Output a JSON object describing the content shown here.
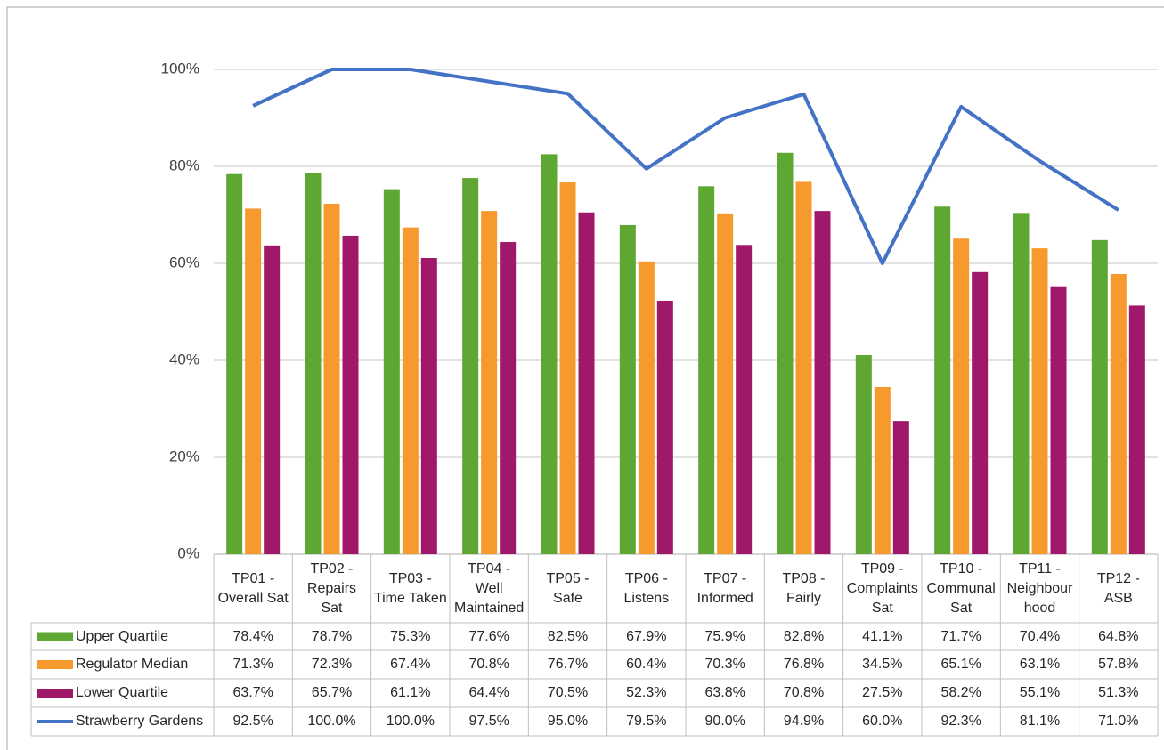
{
  "chart_data": {
    "type": "bar",
    "categories": [
      "TP01 - Overall Sat",
      "TP02 - Repairs Sat",
      "TP03 - Time Taken",
      "TP04 - Well Maintained",
      "TP05 - Safe",
      "TP06 - Listens",
      "TP07 - Informed",
      "TP08 - Fairly",
      "TP09 - Complaints Sat",
      "TP10 - Communal Sat",
      "TP11 - Neighbourhood",
      "TP12 - ASB"
    ],
    "series": [
      {
        "name": "Upper Quartile",
        "type": "bar",
        "color": "#5ea732",
        "values": [
          78.4,
          78.7,
          75.3,
          77.6,
          82.5,
          67.9,
          75.9,
          82.8,
          41.1,
          71.7,
          70.4,
          64.8
        ],
        "value_labels": [
          "78.4%",
          "78.7%",
          "75.3%",
          "77.6%",
          "82.5%",
          "67.9%",
          "75.9%",
          "82.8%",
          "41.1%",
          "71.7%",
          "70.4%",
          "64.8%"
        ]
      },
      {
        "name": "Regulator Median",
        "type": "bar",
        "color": "#f79a2e",
        "values": [
          71.3,
          72.3,
          67.4,
          70.8,
          76.7,
          60.4,
          70.3,
          76.8,
          34.5,
          65.1,
          63.1,
          57.8
        ],
        "value_labels": [
          "71.3%",
          "72.3%",
          "67.4%",
          "70.8%",
          "76.7%",
          "60.4%",
          "70.3%",
          "76.8%",
          "34.5%",
          "65.1%",
          "63.1%",
          "57.8%"
        ]
      },
      {
        "name": "Lower Quartile",
        "type": "bar",
        "color": "#a0186a",
        "values": [
          63.7,
          65.7,
          61.1,
          64.4,
          70.5,
          52.3,
          63.8,
          70.8,
          27.5,
          58.2,
          55.1,
          51.3
        ],
        "value_labels": [
          "63.7%",
          "65.7%",
          "61.1%",
          "64.4%",
          "70.5%",
          "52.3%",
          "63.8%",
          "70.8%",
          "27.5%",
          "58.2%",
          "55.1%",
          "51.3%"
        ]
      },
      {
        "name": "Strawberry Gardens",
        "type": "line",
        "color": "#4472c4",
        "values": [
          92.5,
          100.0,
          100.0,
          97.5,
          95.0,
          79.5,
          90.0,
          94.9,
          60.0,
          92.3,
          81.1,
          71.0
        ],
        "value_labels": [
          "92.5%",
          "100.0%",
          "100.0%",
          "97.5%",
          "95.0%",
          "79.5%",
          "90.0%",
          "94.9%",
          "60.0%",
          "92.3%",
          "81.1%",
          "71.0%"
        ]
      }
    ],
    "ylim": [
      0,
      100
    ],
    "yticks": [
      {
        "value": 0,
        "label": "0%"
      },
      {
        "value": 20,
        "label": "20%"
      },
      {
        "value": 40,
        "label": "40%"
      },
      {
        "value": 60,
        "label": "60%"
      },
      {
        "value": 80,
        "label": "80%"
      },
      {
        "value": 100,
        "label": "100%"
      }
    ],
    "grid": true
  }
}
